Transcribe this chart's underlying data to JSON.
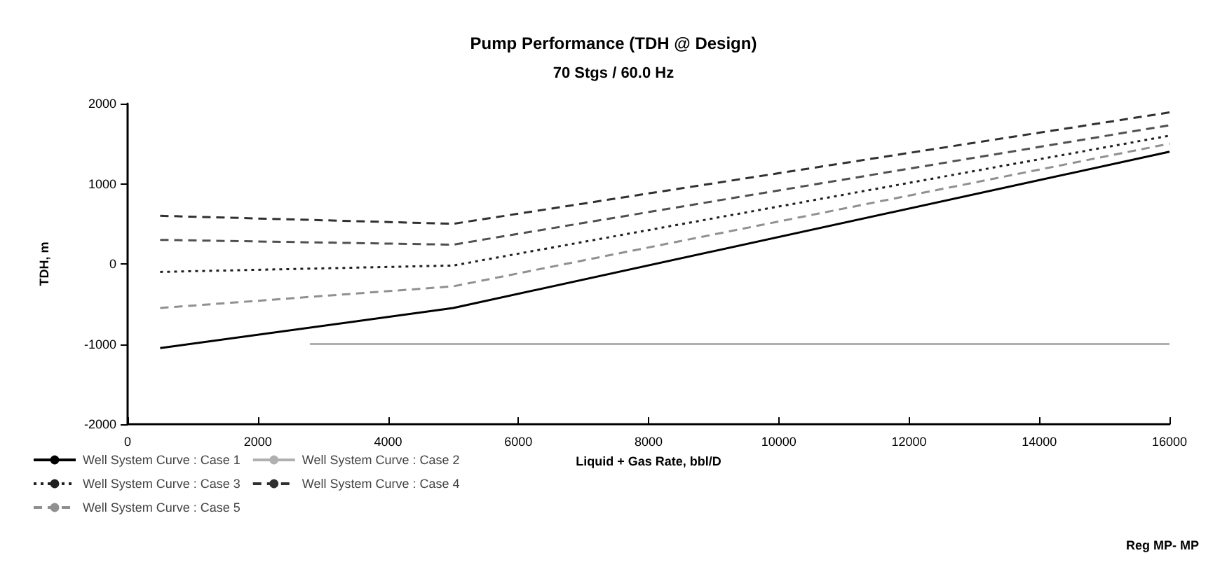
{
  "chart_data": {
    "type": "line",
    "title": "Pump Performance (TDH @ Design)",
    "subtitle": "70 Stgs / 60.0 Hz",
    "xlabel": "Liquid + Gas Rate, bbl/D",
    "ylabel": "TDH, m",
    "annotations": [
      "Reg MP- MP"
    ],
    "xlim": [
      0,
      16000
    ],
    "xticks": [
      0,
      2000,
      4000,
      6000,
      8000,
      10000,
      12000,
      14000,
      16000
    ],
    "ylim": [
      -2000,
      2000
    ],
    "yticks": [
      -2000,
      -1000,
      0,
      1000,
      2000
    ],
    "grid": false,
    "legend": "bottom left",
    "marker": "none",
    "series": [
      {
        "name": "Well System Curve : Case 1",
        "color": "#000000",
        "line_style": "solid",
        "x": [
          500,
          5000,
          16000
        ],
        "values": [
          -1050,
          -550,
          1400
        ]
      },
      {
        "name": "Well System Curve : Case 2",
        "color": "#b0b0b0",
        "line_style": "solid",
        "x": [
          2800,
          16000
        ],
        "values": [
          -1000,
          -1000
        ]
      },
      {
        "name": "Well System Curve : Case 3",
        "color": "#202020",
        "line_style": "dotted",
        "x": [
          500,
          5000,
          16000
        ],
        "values": [
          -100,
          -20,
          1600
        ]
      },
      {
        "name": "Well System Curve : Case 4",
        "color": "#303030",
        "line_style": "dashed",
        "x": [
          500,
          5000,
          16000
        ],
        "values": [
          600,
          500,
          1890
        ]
      },
      {
        "name": "Well System Curve : Case 5",
        "color": "#909090",
        "line_style": "dashed",
        "x": [
          500,
          5000,
          16000
        ],
        "values": [
          -550,
          -280,
          1500
        ]
      },
      {
        "color": "#505050",
        "line_style": "dashed",
        "x": [
          500,
          5000,
          16000
        ],
        "values": [
          300,
          240,
          1730
        ]
      }
    ]
  }
}
